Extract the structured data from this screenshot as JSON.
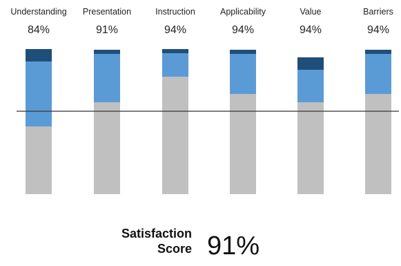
{
  "chart_data": {
    "type": "bar",
    "stacked": true,
    "categories": [
      "Understanding",
      "Presentation",
      "Instruction",
      "Applicability",
      "Value",
      "Barriers"
    ],
    "percent_labels": [
      "84%",
      "91%",
      "94%",
      "94%",
      "94%",
      "94%"
    ],
    "segments_order": [
      "gray",
      "light_blue",
      "dark_blue"
    ],
    "series": [
      {
        "values": [
          98,
          133,
          170,
          145,
          133,
          145
        ]
      },
      {
        "values": [
          94,
          70,
          34,
          58,
          47,
          58
        ]
      },
      {
        "values": [
          18,
          6,
          6,
          6,
          18,
          6
        ]
      }
    ],
    "colors": [
      "#c0c0c0",
      "#5b9bd5",
      "#1f4e79"
    ],
    "reference_line": 120,
    "grid": false,
    "legend": "none"
  },
  "summary": {
    "label_line1": "Satisfaction",
    "label_line2": "Score",
    "value": "91%"
  }
}
